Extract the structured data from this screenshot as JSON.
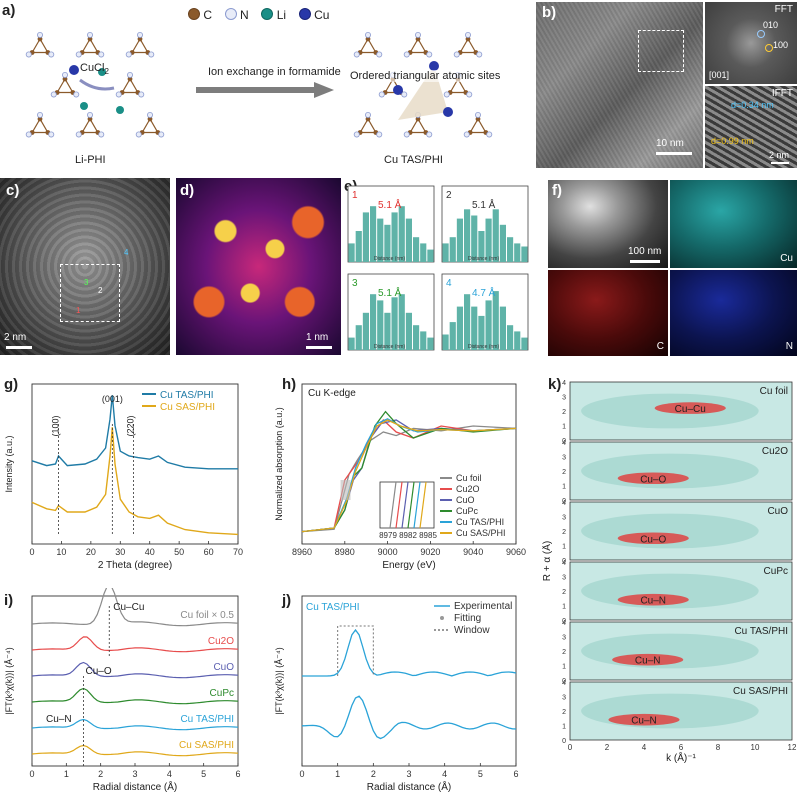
{
  "panel_labels": {
    "a": "a)",
    "b": "b)",
    "c": "c)",
    "d": "d)",
    "e": "e)",
    "f": "f)",
    "g": "g)",
    "h": "h)",
    "i": "i)",
    "j": "j)",
    "k": "k)"
  },
  "panel_a": {
    "legend": [
      {
        "symbol": "C",
        "label": "C",
        "color": "#8b5a2b"
      },
      {
        "symbol": "N",
        "label": "N",
        "color": "#c9d2ea"
      },
      {
        "symbol": "Li",
        "label": "Li",
        "color": "#1a8f87"
      },
      {
        "symbol": "Cu",
        "label": "Cu",
        "color": "#2838a8"
      }
    ],
    "reagent": "CuCl",
    "reagent_sub": "2",
    "arrow_text": "Ion exchange in formamide",
    "site_text": "Ordered triangular atomic sites",
    "left_caption": "Li-PHI",
    "right_caption": "Cu TAS/PHI"
  },
  "panel_b": {
    "fft_label": "FFT",
    "ifft_label": "IFFT",
    "spot_010": "010",
    "spot_100": "100",
    "zone_axis": "[001]",
    "d1": "d",
    "d1_val": "0.34 nm",
    "d2": "d",
    "d2_val": "0.99 nm",
    "scale_main": "10 nm",
    "scale_ifft": "2 nm"
  },
  "panel_c": {
    "scale": "2 nm",
    "marks": [
      "1",
      "2",
      "3",
      "4"
    ]
  },
  "panel_d": {
    "scale": "1 nm"
  },
  "panel_e": {
    "xlabel": "Distance (nm)",
    "plots": [
      {
        "id": "1",
        "value": "5.1 Å",
        "color": "#e0312f"
      },
      {
        "id": "2",
        "value": "5.1 Å",
        "color": "#333333"
      },
      {
        "id": "3",
        "value": "5.1 Å",
        "color": "#2a9a2a"
      },
      {
        "id": "4",
        "value": "4.7 Å",
        "color": "#2aa3d8"
      }
    ]
  },
  "panel_f": {
    "scale": "100 nm",
    "maps": [
      "Cu",
      "C",
      "N"
    ]
  },
  "chart_data": [
    {
      "panel": "g",
      "type": "line",
      "title": "",
      "xlabel": "2 Theta (degree)",
      "ylabel": "Intensity (a.u.)",
      "xlim": [
        0,
        70
      ],
      "xticks": [
        "0",
        "10",
        "20",
        "30",
        "40",
        "50",
        "60",
        "70"
      ],
      "annotations": [
        "(100)",
        "(001)",
        "(220)"
      ],
      "series": [
        {
          "name": "Cu TAS/PHI",
          "color": "#1f7ba6",
          "x": [
            0,
            5,
            8,
            9,
            12,
            18,
            22,
            25,
            26.5,
            27.3,
            28.2,
            30,
            33,
            36,
            40,
            43,
            46,
            52,
            60,
            70
          ],
          "y": [
            0.52,
            0.49,
            0.5,
            0.55,
            0.49,
            0.5,
            0.53,
            0.6,
            0.78,
            0.93,
            0.74,
            0.58,
            0.55,
            0.54,
            0.53,
            0.55,
            0.51,
            0.48,
            0.47,
            0.47
          ]
        },
        {
          "name": "Cu SAS/PHI",
          "color": "#e0a81a",
          "x": [
            0,
            5,
            8,
            9,
            12,
            18,
            22,
            25,
            26.5,
            27.3,
            28.2,
            30,
            33,
            36,
            40,
            43,
            46,
            52,
            60,
            70
          ],
          "y": [
            0.26,
            0.22,
            0.21,
            0.24,
            0.2,
            0.2,
            0.23,
            0.31,
            0.55,
            0.73,
            0.5,
            0.28,
            0.2,
            0.17,
            0.16,
            0.18,
            0.13,
            0.09,
            0.07,
            0.06
          ]
        }
      ]
    },
    {
      "panel": "h",
      "type": "line",
      "title": "Cu K-edge",
      "xlabel": "Energy (eV)",
      "ylabel": "Normalized absorption (a.u.)",
      "xlim": [
        8960,
        9060
      ],
      "xticks": [
        "8960",
        "8980",
        "9000",
        "9020",
        "9040",
        "9060"
      ],
      "inset_xticks": [
        "8979",
        "8982",
        "8985"
      ],
      "series": [
        {
          "name": "Cu foil",
          "color": "#8a8a8a",
          "x": [
            8960,
            8975,
            8979,
            8982,
            8986,
            8992,
            8998,
            9004,
            9012,
            9025,
            9040,
            9060
          ],
          "y": [
            0.02,
            0.04,
            0.3,
            0.5,
            0.62,
            0.78,
            0.85,
            0.82,
            0.88,
            0.86,
            0.9,
            0.88
          ]
        },
        {
          "name": "Cu2O",
          "color": "#e74c4c",
          "x": [
            8960,
            8975,
            8980,
            8982,
            8986,
            8992,
            8998,
            9004,
            9012,
            9025,
            9040,
            9060
          ],
          "y": [
            0.02,
            0.05,
            0.45,
            0.5,
            0.6,
            0.8,
            0.95,
            0.85,
            0.8,
            0.9,
            0.86,
            0.88
          ]
        },
        {
          "name": "CuO",
          "color": "#5b5fb0",
          "x": [
            8960,
            8975,
            8980,
            8984,
            8988,
            8992,
            8997,
            9004,
            9012,
            9025,
            9040,
            9060
          ],
          "y": [
            0.02,
            0.05,
            0.2,
            0.45,
            0.55,
            0.8,
            0.92,
            0.95,
            0.86,
            0.88,
            0.86,
            0.88
          ]
        },
        {
          "name": "CuPc",
          "color": "#2e8b2e",
          "x": [
            8960,
            8975,
            8980,
            8984,
            8988,
            8994,
            8999,
            9004,
            9012,
            9025,
            9040,
            9060
          ],
          "y": [
            0.02,
            0.05,
            0.2,
            0.48,
            0.55,
            0.9,
            1.02,
            0.92,
            0.8,
            0.88,
            0.85,
            0.88
          ]
        },
        {
          "name": "Cu TAS/PHI",
          "color": "#2aa3d8",
          "x": [
            8960,
            8975,
            8981,
            8985,
            8990,
            8995,
            9000,
            9006,
            9014,
            9025,
            9040,
            9060
          ],
          "y": [
            0.02,
            0.05,
            0.3,
            0.55,
            0.75,
            0.92,
            0.96,
            0.9,
            0.85,
            0.87,
            0.86,
            0.88
          ]
        },
        {
          "name": "Cu SAS/PHI",
          "color": "#e0a81a",
          "x": [
            8960,
            8975,
            8981,
            8985,
            8990,
            8995,
            9000,
            9006,
            9014,
            9025,
            9040,
            9060
          ],
          "y": [
            0.02,
            0.05,
            0.28,
            0.52,
            0.72,
            0.9,
            0.95,
            0.9,
            0.86,
            0.87,
            0.86,
            0.88
          ]
        }
      ]
    },
    {
      "panel": "i",
      "type": "line",
      "title": "",
      "xlabel": "Radial distance (Å)",
      "ylabel": "|FT(k³χ(k))| (Å⁻⁴)",
      "xlim": [
        0,
        6
      ],
      "xticks": [
        "0",
        "1",
        "2",
        "3",
        "4",
        "5",
        "6"
      ],
      "annotations": [
        "Cu–Cu",
        "Cu–O",
        "Cu–N"
      ],
      "series": [
        {
          "name": "Cu foil × 0.5",
          "color": "#8a8a8a",
          "offset": 5
        },
        {
          "name": "Cu2O",
          "color": "#e74c4c",
          "offset": 4
        },
        {
          "name": "CuO",
          "color": "#5b5fb0",
          "offset": 3
        },
        {
          "name": "CuPc",
          "color": "#2e8b2e",
          "offset": 2
        },
        {
          "name": "Cu TAS/PHI",
          "color": "#2aa3d8",
          "offset": 1
        },
        {
          "name": "Cu SAS/PHI",
          "color": "#e0a81a",
          "offset": 0
        }
      ]
    },
    {
      "panel": "j",
      "type": "line",
      "title": "Cu TAS/PHI",
      "xlabel": "Radial distance (Å)",
      "ylabel": "|FT(k³χ(k))| (Å⁻⁴)",
      "xlim": [
        0,
        6
      ],
      "xticks": [
        "0",
        "1",
        "2",
        "3",
        "4",
        "5",
        "6"
      ],
      "legend": [
        "Experimental",
        "Fitting",
        "Window"
      ]
    },
    {
      "panel": "k",
      "type": "heatmap",
      "title": "",
      "xlabel": "k (Å)⁻¹",
      "ylabel": "R + α (Å)",
      "xlim": [
        0,
        12
      ],
      "xticks": [
        "0",
        "2",
        "4",
        "6",
        "8",
        "10",
        "12"
      ],
      "ylim": [
        0,
        4
      ],
      "yticks": [
        "0",
        "1",
        "2",
        "3",
        "4"
      ],
      "maps": [
        {
          "name": "Cu foil",
          "feature": "Cu–Cu",
          "k": 6.5,
          "r": 2.2
        },
        {
          "name": "Cu2O",
          "feature": "Cu–O",
          "k": 4.5,
          "r": 1.5
        },
        {
          "name": "CuO",
          "feature": "Cu–O",
          "k": 4.5,
          "r": 1.5
        },
        {
          "name": "CuPc",
          "feature": "Cu–N",
          "k": 4.5,
          "r": 1.4
        },
        {
          "name": "Cu TAS/PHI",
          "feature": "Cu–N",
          "k": 4.2,
          "r": 1.4
        },
        {
          "name": "Cu SAS/PHI",
          "feature": "Cu–N",
          "k": 4.0,
          "r": 1.4
        }
      ]
    }
  ]
}
